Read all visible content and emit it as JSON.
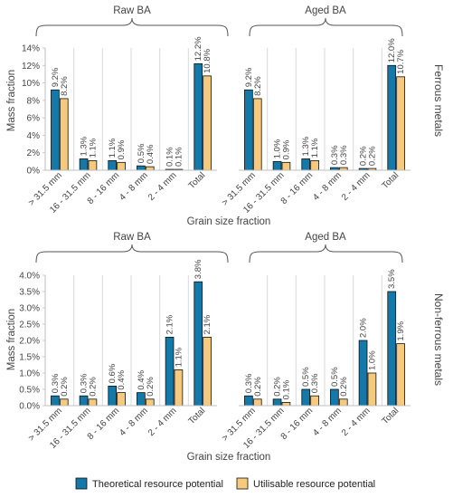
{
  "colors": {
    "theoretical": "#1478A8",
    "utilisable": "#F5C97E",
    "edge": "#111111",
    "grid": "#d9d9d9",
    "brace": "#555555"
  },
  "legend": [
    {
      "label": "Theoretical resource potential",
      "color": "#1478A8"
    },
    {
      "label": "Utilisable resource potential",
      "color": "#F5C97E"
    }
  ],
  "chart_data": [
    {
      "type": "bar",
      "row_label": "Ferrous metals",
      "ylabel": "Mass fraction",
      "xlabel": "Grain size fraction",
      "ylim": [
        0,
        0.14
      ],
      "yticks": [
        "0%",
        "2%",
        "4%",
        "6%",
        "8%",
        "10%",
        "12%",
        "14%"
      ],
      "groups": [
        {
          "title": "Raw BA",
          "categories": [
            "> 31.5 mm",
            "16 - 31.5 mm",
            "8 - 16 mm",
            "4 - 8 mm",
            "2 - 4 mm",
            "Total"
          ],
          "series": [
            {
              "name": "Theoretical resource potential",
              "values": [
                0.092,
                0.013,
                0.011,
                0.005,
                0.001,
                0.122
              ],
              "labels": [
                "9.2%",
                "1.3%",
                "1.1%",
                "0.5%",
                "0.1%",
                "12.2%"
              ]
            },
            {
              "name": "Utilisable resource potential",
              "values": [
                0.082,
                0.011,
                0.009,
                0.004,
                0.001,
                0.108
              ],
              "labels": [
                "8.2%",
                "1.1%",
                "0.9%",
                "0.4%",
                "0.1%",
                "10.8%"
              ]
            }
          ]
        },
        {
          "title": "Aged BA",
          "categories": [
            "> 31.5 mm",
            "16 - 31.5 mm",
            "8 - 16 mm",
            "4 - 8 mm",
            "2 - 4 mm",
            "Total"
          ],
          "series": [
            {
              "name": "Theoretical resource potential",
              "values": [
                0.092,
                0.01,
                0.013,
                0.003,
                0.002,
                0.12
              ],
              "labels": [
                "9.2%",
                "1.0%",
                "1.3%",
                "0.3%",
                "0.2%",
                "12.0%"
              ]
            },
            {
              "name": "Utilisable resource potential",
              "values": [
                0.082,
                0.009,
                0.011,
                0.003,
                0.002,
                0.107
              ],
              "labels": [
                "8.2%",
                "0.9%",
                "1.1%",
                "0.3%",
                "0.2%",
                "10.7%"
              ]
            }
          ]
        }
      ]
    },
    {
      "type": "bar",
      "row_label": "Non-ferrous metals",
      "ylabel": "Mass fraction",
      "xlabel": "Grain size fraction",
      "ylim": [
        0,
        0.04
      ],
      "yticks": [
        "0.0%",
        "0.5%",
        "1.0%",
        "1.5%",
        "2.0%",
        "2.5%",
        "3.0%",
        "3.5%",
        "4.0%"
      ],
      "groups": [
        {
          "title": "Raw BA",
          "categories": [
            "> 31.5 mm",
            "16 - 31.5 mm",
            "8 - 16 mm",
            "4 - 8 mm",
            "2 - 4 mm",
            "Total"
          ],
          "series": [
            {
              "name": "Theoretical resource potential",
              "values": [
                0.003,
                0.003,
                0.006,
                0.004,
                0.021,
                0.038
              ],
              "labels": [
                "0.3%",
                "0.3%",
                "0.6%",
                "0.4%",
                "2.1%",
                "3.8%"
              ]
            },
            {
              "name": "Utilisable resource potential",
              "values": [
                0.002,
                0.002,
                0.004,
                0.002,
                0.011,
                0.021
              ],
              "labels": [
                "0.2%",
                "0.2%",
                "0.4%",
                "0.2%",
                "1.1%",
                "2.1%"
              ]
            }
          ]
        },
        {
          "title": "Aged BA",
          "categories": [
            "> 31.5 mm",
            "16 - 31.5 mm",
            "8 - 16 mm",
            "4 - 8 mm",
            "2 - 4 mm",
            "Total"
          ],
          "series": [
            {
              "name": "Theoretical resource potential",
              "values": [
                0.003,
                0.002,
                0.005,
                0.005,
                0.02,
                0.035
              ],
              "labels": [
                "0.3%",
                "0.2%",
                "0.5%",
                "0.5%",
                "2.0%",
                "3.5%"
              ]
            },
            {
              "name": "Utilisable resource potential",
              "values": [
                0.002,
                0.001,
                0.003,
                0.002,
                0.01,
                0.019
              ],
              "labels": [
                "0.2%",
                "0.1%",
                "0.3%",
                "0.2%",
                "1.0%",
                "1.9%"
              ]
            }
          ]
        }
      ]
    }
  ]
}
